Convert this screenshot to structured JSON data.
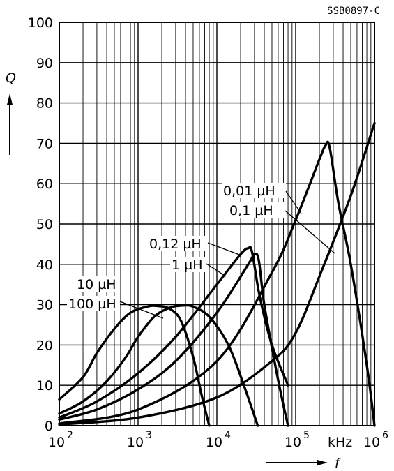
{
  "chart_data": {
    "type": "line",
    "code": "SSB0897-C",
    "ylabel": "Q",
    "xlabel": "f",
    "xunit": "kHz",
    "xscale": "log",
    "xlim": [
      100,
      1000000
    ],
    "ylim": [
      0,
      100
    ],
    "grid": true,
    "x_ticks": [
      {
        "value": 100,
        "base": "10",
        "exp": "2"
      },
      {
        "value": 1000,
        "base": "10",
        "exp": "3"
      },
      {
        "value": 10000,
        "base": "10",
        "exp": "4"
      },
      {
        "value": 100000,
        "base": "10",
        "exp": "5"
      },
      {
        "value": 1000000,
        "base": "10",
        "exp": "6"
      }
    ],
    "y_ticks": [
      "0",
      "10",
      "20",
      "30",
      "40",
      "50",
      "60",
      "70",
      "80",
      "90",
      "100"
    ],
    "series": [
      {
        "name": "10 µH",
        "points": [
          [
            100,
            6.5
          ],
          [
            200,
            12
          ],
          [
            300,
            18
          ],
          [
            500,
            24
          ],
          [
            800,
            28
          ],
          [
            1300,
            29.5
          ],
          [
            1700,
            29.7
          ],
          [
            2500,
            29
          ],
          [
            3500,
            26
          ],
          [
            5000,
            17
          ],
          [
            6500,
            7
          ],
          [
            8000,
            0
          ]
        ]
      },
      {
        "name": "100 µH",
        "points": [
          [
            100,
            3
          ],
          [
            200,
            6
          ],
          [
            400,
            11
          ],
          [
            700,
            17
          ],
          [
            1000,
            22
          ],
          [
            1600,
            27
          ],
          [
            2500,
            29.2
          ],
          [
            3700,
            29.8
          ],
          [
            5000,
            29.5
          ],
          [
            8000,
            27
          ],
          [
            14000,
            20
          ],
          [
            22000,
            10
          ],
          [
            33000,
            0
          ]
        ]
      },
      {
        "name": "0,12 µH",
        "points": [
          [
            100,
            2
          ],
          [
            300,
            6
          ],
          [
            1000,
            13
          ],
          [
            3000,
            22
          ],
          [
            10000,
            35
          ],
          [
            20000,
            42.5
          ],
          [
            25000,
            44
          ],
          [
            28000,
            43
          ],
          [
            35000,
            32
          ],
          [
            50000,
            20
          ],
          [
            80000,
            10
          ]
        ]
      },
      {
        "name": "1 µH",
        "points": [
          [
            100,
            1.5
          ],
          [
            300,
            4
          ],
          [
            1000,
            9
          ],
          [
            3000,
            16
          ],
          [
            10000,
            28
          ],
          [
            25000,
            40
          ],
          [
            30000,
            42.5
          ],
          [
            34000,
            41
          ],
          [
            40000,
            30
          ],
          [
            55000,
            15
          ],
          [
            70000,
            5
          ],
          [
            80000,
            0
          ]
        ]
      },
      {
        "name": "0,01 µH",
        "points": [
          [
            100,
            0.5
          ],
          [
            1000,
            4
          ],
          [
            10000,
            16
          ],
          [
            50000,
            38
          ],
          [
            100000,
            51
          ],
          [
            200000,
            66
          ],
          [
            240000,
            69.5
          ],
          [
            270000,
            69
          ],
          [
            350000,
            55
          ],
          [
            500000,
            40
          ],
          [
            800000,
            15
          ],
          [
            1000000,
            0
          ]
        ]
      },
      {
        "name": "0,1 µH",
        "points": [
          [
            100,
            0.3
          ],
          [
            1000,
            2
          ],
          [
            10000,
            7
          ],
          [
            50000,
            16
          ],
          [
            100000,
            23
          ],
          [
            200000,
            37
          ],
          [
            500000,
            57
          ],
          [
            1000000,
            75
          ]
        ]
      }
    ],
    "annotations": [
      {
        "id": "l10",
        "text": "10 µH"
      },
      {
        "id": "l100",
        "text": "100 µH"
      },
      {
        "id": "l012",
        "text": "0,12 µH"
      },
      {
        "id": "l1",
        "text": "1 µH"
      },
      {
        "id": "l001",
        "text": "0,01 µH"
      },
      {
        "id": "l01",
        "text": "0,1 µH"
      }
    ]
  }
}
